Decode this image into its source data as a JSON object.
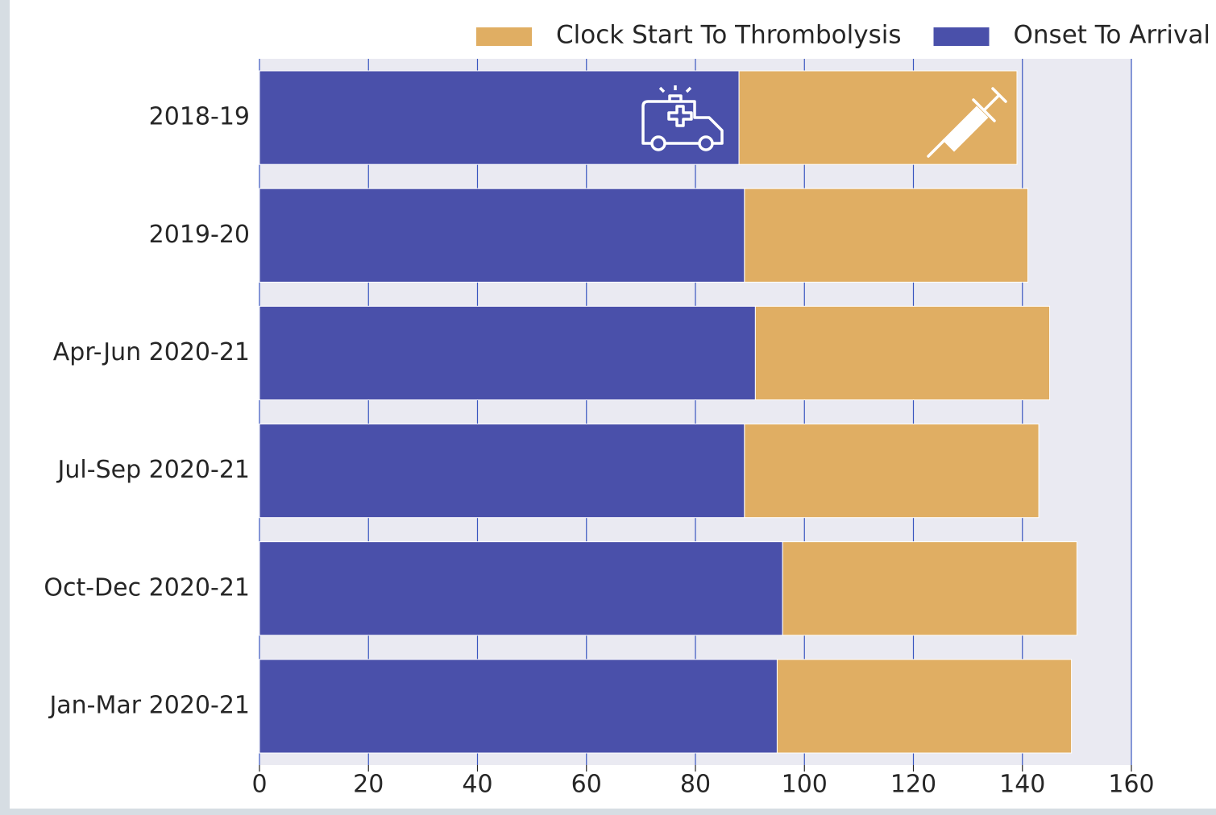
{
  "chart_data": {
    "type": "stacked-barh",
    "categories": [
      "2018-19",
      "2019-20",
      "Apr-Jun 2020-21",
      "Jul-Sep 2020-21",
      "Oct-Dec 2020-21",
      "Jan-Mar 2020-21"
    ],
    "series": [
      {
        "name": "Onset To Arrival",
        "color": "#4a50aa",
        "values": [
          88,
          89,
          91,
          89,
          96,
          95
        ]
      },
      {
        "name": "Clock Start To Thrombolysis",
        "color": "#e0ae63",
        "values": [
          51,
          52,
          54,
          54,
          54,
          54
        ]
      }
    ],
    "xlim": [
      0,
      160
    ],
    "xticks": [
      0,
      20,
      40,
      60,
      80,
      100,
      120,
      140,
      160
    ],
    "grid": true,
    "legend": "top-right"
  }
}
